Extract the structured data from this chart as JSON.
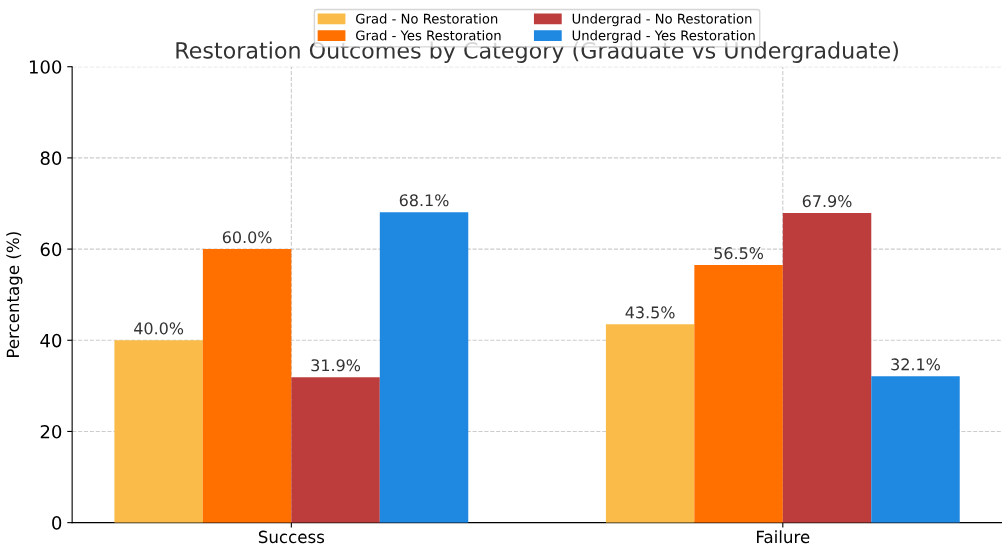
{
  "chart_data": {
    "type": "bar",
    "title": "Restoration Outcomes by Category (Graduate vs Undergraduate)",
    "ylabel": "Percentage (%)",
    "categories": [
      "Success",
      "Failure"
    ],
    "series": [
      {
        "name": "Grad - No Restoration",
        "color": "#fabb48",
        "values": [
          40.0,
          43.5
        ],
        "value_labels": [
          "40.0%",
          "43.5%"
        ]
      },
      {
        "name": "Grad - Yes Restoration",
        "color": "#ff7000",
        "values": [
          60.0,
          56.5
        ],
        "value_labels": [
          "60.0%",
          "56.5%"
        ]
      },
      {
        "name": "Undergrad - No Restoration",
        "color": "#bd3d3d",
        "values": [
          31.9,
          67.9
        ],
        "value_labels": [
          "31.9%",
          "67.9%"
        ]
      },
      {
        "name": "Undergrad - Yes Restoration",
        "color": "#1f88e0",
        "values": [
          68.1,
          32.1
        ],
        "value_labels": [
          "68.1%",
          "32.1%"
        ]
      }
    ],
    "ylim": [
      0,
      100
    ],
    "yticks": [
      0,
      20,
      40,
      60,
      80,
      100
    ],
    "grid": true,
    "legend": "top"
  }
}
